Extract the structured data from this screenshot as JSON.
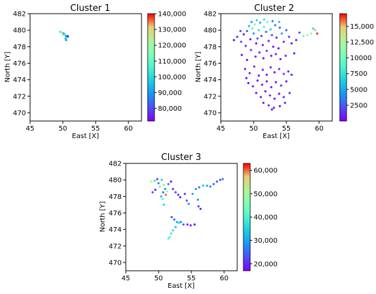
{
  "chart_data": [
    {
      "type": "scatter",
      "title": "Cluster 1",
      "xlabel": "East [X]",
      "ylabel": "North [Y]",
      "xlim": [
        45,
        62
      ],
      "ylim": [
        469,
        482
      ],
      "xticks": [
        45,
        50,
        55,
        60
      ],
      "yticks": [
        470,
        472,
        474,
        476,
        478,
        480,
        482
      ],
      "grid": false,
      "colorbar": {
        "min": 72000,
        "max": 140000,
        "ticks": [
          80000,
          90000,
          100000,
          110000,
          120000,
          130000,
          140000
        ],
        "tick_labels": [
          "80,000",
          "90,000",
          "100,000",
          "110,000",
          "120,000",
          "130,000",
          "140,000"
        ]
      },
      "points": [
        [
          49.6,
          479.8,
          105000
        ],
        [
          49.9,
          479.7,
          128000
        ],
        [
          50.1,
          479.6,
          96000
        ],
        [
          50.2,
          479.5,
          84000
        ],
        [
          50.3,
          479.4,
          112000
        ],
        [
          50.5,
          479.3,
          92000
        ],
        [
          50.6,
          479.2,
          88000
        ],
        [
          50.4,
          479.0,
          98000
        ],
        [
          50.7,
          479.3,
          86000
        ],
        [
          50.0,
          479.4,
          118000
        ],
        [
          50.8,
          479.25,
          80000
        ],
        [
          50.5,
          478.8,
          90000
        ]
      ]
    },
    {
      "type": "scatter",
      "title": "Cluster 2",
      "xlabel": "East [X]",
      "ylabel": "North [Y]",
      "xlim": [
        45,
        62
      ],
      "ylim": [
        469,
        482
      ],
      "xticks": [
        45,
        50,
        55,
        60
      ],
      "yticks": [
        470,
        472,
        474,
        476,
        478,
        480,
        482
      ],
      "grid": false,
      "colorbar": {
        "min": 0,
        "max": 17000,
        "ticks": [
          2500,
          5000,
          7500,
          10000,
          12500,
          15000
        ],
        "tick_labels": [
          "2500",
          "5000",
          "7500",
          "10000",
          "12,500",
          "15,000"
        ]
      },
      "points": [
        [
          47.0,
          478.8,
          500
        ],
        [
          47.5,
          479.2,
          1200
        ],
        [
          48.1,
          478.6,
          2000
        ],
        [
          48.5,
          479.5,
          800
        ],
        [
          48.8,
          478.1,
          1500
        ],
        [
          49.0,
          479.9,
          3000
        ],
        [
          49.3,
          480.5,
          6000
        ],
        [
          49.5,
          478.9,
          1000
        ],
        [
          49.8,
          480.2,
          9000
        ],
        [
          50.0,
          479.6,
          4500
        ],
        [
          50.2,
          480.7,
          11000
        ],
        [
          50.4,
          478.4,
          700
        ],
        [
          50.6,
          479.0,
          2500
        ],
        [
          50.8,
          480.0,
          7500
        ],
        [
          51.0,
          480.9,
          5500
        ],
        [
          51.2,
          479.3,
          1800
        ],
        [
          51.4,
          478.2,
          900
        ],
        [
          51.6,
          480.4,
          8500
        ],
        [
          51.9,
          479.8,
          3500
        ],
        [
          52.1,
          481.0,
          10000
        ],
        [
          52.3,
          478.7,
          1100
        ],
        [
          52.6,
          480.1,
          6500
        ],
        [
          52.8,
          479.4,
          2200
        ],
        [
          53.0,
          478.0,
          600
        ],
        [
          53.3,
          480.6,
          4000
        ],
        [
          53.5,
          479.1,
          1300
        ],
        [
          53.8,
          477.8,
          800
        ],
        [
          54.0,
          480.3,
          3000
        ],
        [
          54.3,
          479.6,
          5000
        ],
        [
          54.6,
          478.6,
          1000
        ],
        [
          55.0,
          480.0,
          2800
        ],
        [
          55.4,
          479.2,
          1600
        ],
        [
          55.8,
          478.4,
          900
        ],
        [
          56.2,
          477.2,
          700
        ],
        [
          56.5,
          478.8,
          1400
        ],
        [
          57.0,
          479.7,
          2600
        ],
        [
          57.6,
          479.3,
          9500
        ],
        [
          58.2,
          479.4,
          12000
        ],
        [
          58.8,
          479.6,
          11500
        ],
        [
          59.4,
          480.0,
          15000
        ],
        [
          59.7,
          479.6,
          16500
        ],
        [
          59.1,
          480.2,
          7000
        ],
        [
          48.2,
          477.0,
          600
        ],
        [
          49.0,
          476.4,
          900
        ],
        [
          49.6,
          477.6,
          1500
        ],
        [
          50.3,
          476.8,
          700
        ],
        [
          50.9,
          477.3,
          1200
        ],
        [
          51.5,
          476.6,
          500
        ],
        [
          52.0,
          477.5,
          1700
        ],
        [
          52.7,
          476.9,
          800
        ],
        [
          53.4,
          477.1,
          1100
        ],
        [
          54.1,
          476.5,
          600
        ],
        [
          54.9,
          476.9,
          1300
        ],
        [
          48.7,
          475.3,
          500
        ],
        [
          49.4,
          474.8,
          800
        ],
        [
          50.1,
          475.6,
          1000
        ],
        [
          50.8,
          474.5,
          600
        ],
        [
          51.4,
          475.2,
          1400
        ],
        [
          52.0,
          474.6,
          700
        ],
        [
          52.6,
          475.5,
          1200
        ],
        [
          53.2,
          474.9,
          500
        ],
        [
          53.9,
          475.3,
          900
        ],
        [
          54.6,
          474.7,
          1600
        ],
        [
          55.3,
          475.0,
          800
        ],
        [
          55.8,
          474.6,
          1100
        ],
        [
          49.2,
          473.6,
          600
        ],
        [
          49.9,
          473.2,
          900
        ],
        [
          50.6,
          473.9,
          500
        ],
        [
          51.3,
          473.4,
          1200
        ],
        [
          52.0,
          473.8,
          700
        ],
        [
          52.7,
          473.1,
          1000
        ],
        [
          53.4,
          473.7,
          600
        ],
        [
          54.2,
          473.3,
          1300
        ],
        [
          55.0,
          473.8,
          800
        ],
        [
          50.4,
          472.4,
          500
        ],
        [
          51.1,
          471.9,
          900
        ],
        [
          51.8,
          472.6,
          600
        ],
        [
          52.5,
          472.1,
          1100
        ],
        [
          53.2,
          471.7,
          700
        ],
        [
          53.9,
          472.3,
          500
        ],
        [
          54.6,
          471.9,
          1000
        ],
        [
          51.5,
          471.2,
          600
        ],
        [
          52.3,
          470.9,
          800
        ],
        [
          53.1,
          470.6,
          500
        ],
        [
          54.0,
          470.8,
          700
        ],
        [
          54.8,
          471.2,
          900
        ],
        [
          52.8,
          470.4,
          600
        ],
        [
          55.5,
          472.4,
          1200
        ],
        [
          48.9,
          474.2,
          500
        ],
        [
          48.0,
          479.9,
          2000
        ],
        [
          49.7,
          481.0,
          4500
        ],
        [
          50.5,
          481.2,
          7000
        ],
        [
          51.6,
          481.3,
          8000
        ],
        [
          52.9,
          481.1,
          3500
        ],
        [
          53.9,
          481.0,
          6000
        ]
      ]
    },
    {
      "type": "scatter",
      "title": "Cluster 3",
      "xlabel": "East [X]",
      "ylabel": "North [Y]",
      "xlim": [
        45,
        62
      ],
      "ylim": [
        469,
        482
      ],
      "xticks": [
        45,
        50,
        55,
        60
      ],
      "yticks": [
        470,
        472,
        474,
        476,
        478,
        480,
        482
      ],
      "grid": false,
      "colorbar": {
        "min": 17000,
        "max": 63000,
        "ticks": [
          20000,
          30000,
          40000,
          50000,
          60000
        ],
        "tick_labels": [
          "20,000",
          "30,000",
          "40,000",
          "50,000",
          "60,000"
        ]
      },
      "points": [
        [
          48.9,
          479.8,
          52000
        ],
        [
          49.4,
          479.9,
          38000
        ],
        [
          49.8,
          480.1,
          22000
        ],
        [
          50.0,
          479.6,
          28000
        ],
        [
          50.2,
          479.2,
          42000
        ],
        [
          50.5,
          480.0,
          35000
        ],
        [
          50.8,
          479.4,
          55000
        ],
        [
          51.0,
          478.9,
          30000
        ],
        [
          51.3,
          478.6,
          46000
        ],
        [
          51.1,
          478.2,
          60000
        ],
        [
          50.7,
          478.5,
          26000
        ],
        [
          50.4,
          478.0,
          33000
        ],
        [
          50.6,
          477.7,
          40000
        ],
        [
          50.8,
          477.0,
          36000
        ],
        [
          49.1,
          478.5,
          24000
        ],
        [
          49.5,
          478.8,
          20000
        ],
        [
          51.5,
          479.5,
          27000
        ],
        [
          51.9,
          479.8,
          19000
        ],
        [
          52.2,
          478.9,
          21000
        ],
        [
          52.6,
          478.5,
          23000
        ],
        [
          53.0,
          478.2,
          22000
        ],
        [
          53.3,
          477.9,
          20000
        ],
        [
          54.0,
          478.3,
          21000
        ],
        [
          54.3,
          477.5,
          25000
        ],
        [
          54.6,
          477.1,
          28000
        ],
        [
          55.2,
          478.3,
          30000
        ],
        [
          55.7,
          478.9,
          29000
        ],
        [
          56.2,
          479.1,
          27000
        ],
        [
          56.8,
          479.3,
          34000
        ],
        [
          57.4,
          479.3,
          31000
        ],
        [
          57.9,
          479.2,
          28000
        ],
        [
          58.4,
          479.5,
          26000
        ],
        [
          58.9,
          479.8,
          24000
        ],
        [
          59.4,
          480.0,
          22000
        ],
        [
          59.8,
          480.1,
          27000
        ],
        [
          56.0,
          477.6,
          30000
        ],
        [
          56.1,
          476.8,
          21000
        ],
        [
          56.4,
          476.5,
          19000
        ],
        [
          52.0,
          475.5,
          23000
        ],
        [
          52.4,
          475.2,
          25000
        ],
        [
          52.8,
          474.9,
          31000
        ],
        [
          53.1,
          474.8,
          36000
        ],
        [
          53.4,
          474.9,
          29000
        ],
        [
          53.8,
          474.6,
          24000
        ],
        [
          54.4,
          474.6,
          21000
        ],
        [
          54.9,
          474.5,
          20000
        ],
        [
          55.5,
          474.6,
          19000
        ],
        [
          52.6,
          474.3,
          33000
        ],
        [
          52.2,
          473.9,
          37000
        ],
        [
          51.9,
          473.5,
          39000
        ],
        [
          51.7,
          473.1,
          44000
        ],
        [
          51.5,
          472.9,
          40000
        ]
      ]
    }
  ]
}
